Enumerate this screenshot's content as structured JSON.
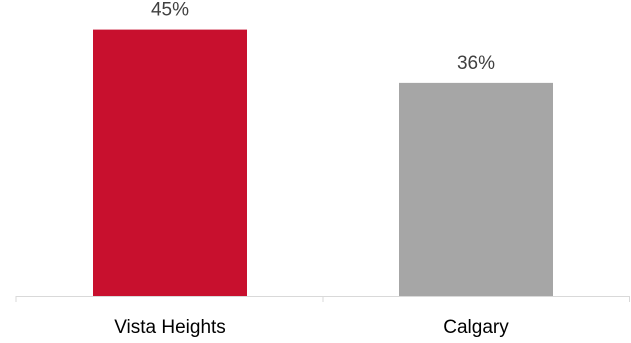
{
  "chart_data": {
    "type": "bar",
    "categories": [
      "Vista Heights",
      "Calgary"
    ],
    "values": [
      45,
      36
    ],
    "value_labels": [
      "45%",
      "36%"
    ],
    "bar_colors": [
      "#c8102e",
      "#a6a6a6"
    ],
    "ylim": [
      0,
      50
    ],
    "grid": false,
    "legend": "none"
  }
}
